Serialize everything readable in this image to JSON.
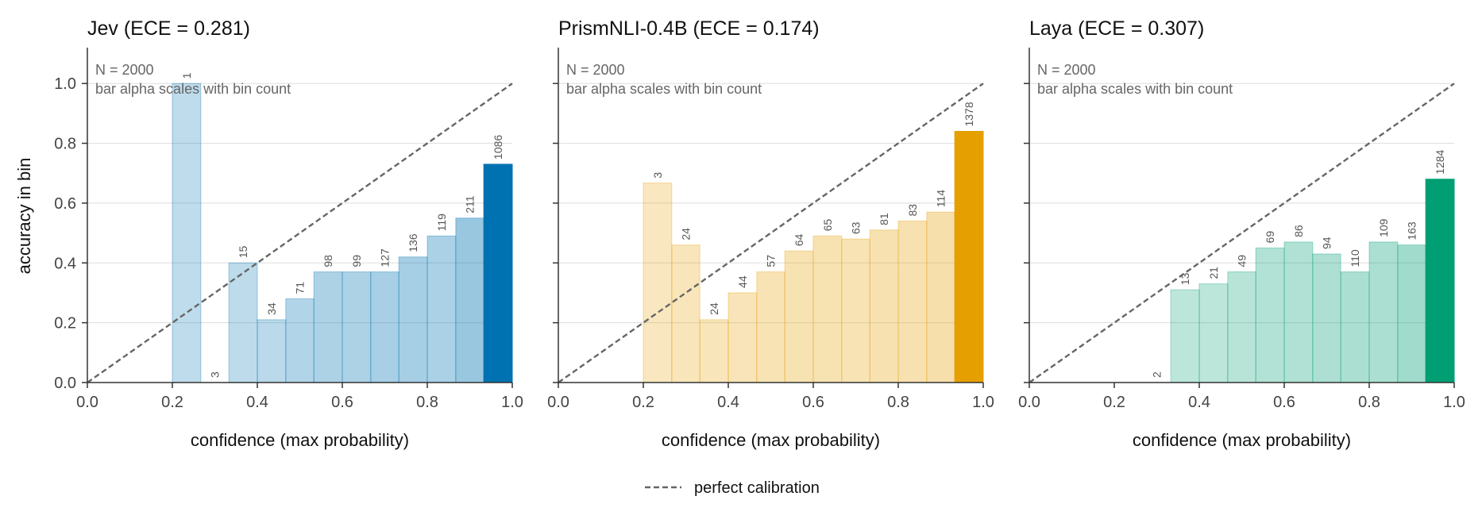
{
  "figure": {
    "ylabel": "accuracy in bin",
    "legend": {
      "label": "perfect calibration",
      "placement": "bottom-center"
    }
  },
  "chart_data": [
    {
      "type": "bar",
      "title": "Jev  (ECE = 0.281)",
      "xlabel": "confidence (max probability)",
      "ylabel": "accuracy in bin",
      "note_lines": [
        "N = 2000",
        "bar alpha scales with bin count"
      ],
      "color": "#0072b2",
      "xlim": [
        0.0,
        1.0
      ],
      "ylim": [
        0.0,
        1.12
      ],
      "grid": true,
      "xticks": [
        "0.0",
        "0.2",
        "0.4",
        "0.6",
        "0.8",
        "1.0"
      ],
      "yticks": [
        "0.0",
        "0.2",
        "0.4",
        "0.6",
        "0.8",
        "1.0"
      ],
      "bins": [
        {
          "x0": 0.2,
          "x1": 0.267,
          "acc": 1.0,
          "count": 1
        },
        {
          "x0": 0.267,
          "x1": 0.333,
          "acc": 0.0,
          "count": 3
        },
        {
          "x0": 0.333,
          "x1": 0.4,
          "acc": 0.4,
          "count": 15
        },
        {
          "x0": 0.4,
          "x1": 0.467,
          "acc": 0.21,
          "count": 34
        },
        {
          "x0": 0.467,
          "x1": 0.533,
          "acc": 0.28,
          "count": 71
        },
        {
          "x0": 0.533,
          "x1": 0.6,
          "acc": 0.37,
          "count": 98
        },
        {
          "x0": 0.6,
          "x1": 0.667,
          "acc": 0.37,
          "count": 99
        },
        {
          "x0": 0.667,
          "x1": 0.733,
          "acc": 0.37,
          "count": 127
        },
        {
          "x0": 0.733,
          "x1": 0.8,
          "acc": 0.42,
          "count": 136
        },
        {
          "x0": 0.8,
          "x1": 0.867,
          "acc": 0.49,
          "count": 119
        },
        {
          "x0": 0.867,
          "x1": 0.933,
          "acc": 0.55,
          "count": 211
        },
        {
          "x0": 0.933,
          "x1": 1.0,
          "acc": 0.73,
          "count": 1086
        }
      ],
      "reference_line": {
        "from": [
          0,
          0
        ],
        "to": [
          1,
          1
        ],
        "style": "dashed"
      }
    },
    {
      "type": "bar",
      "title": "PrismNLI-0.4B  (ECE = 0.174)",
      "xlabel": "confidence (max probability)",
      "note_lines": [
        "N = 2000",
        "bar alpha scales with bin count"
      ],
      "color": "#e69f00",
      "xlim": [
        0.0,
        1.0
      ],
      "ylim": [
        0.0,
        1.12
      ],
      "grid": true,
      "xticks": [
        "0.0",
        "0.2",
        "0.4",
        "0.6",
        "0.8",
        "1.0"
      ],
      "yticks": [],
      "bins": [
        {
          "x0": 0.2,
          "x1": 0.267,
          "acc": 0.667,
          "count": 3
        },
        {
          "x0": 0.267,
          "x1": 0.333,
          "acc": 0.46,
          "count": 24
        },
        {
          "x0": 0.333,
          "x1": 0.4,
          "acc": 0.21,
          "count": 24
        },
        {
          "x0": 0.4,
          "x1": 0.467,
          "acc": 0.3,
          "count": 44
        },
        {
          "x0": 0.467,
          "x1": 0.533,
          "acc": 0.37,
          "count": 57
        },
        {
          "x0": 0.533,
          "x1": 0.6,
          "acc": 0.44,
          "count": 64
        },
        {
          "x0": 0.6,
          "x1": 0.667,
          "acc": 0.49,
          "count": 65
        },
        {
          "x0": 0.667,
          "x1": 0.733,
          "acc": 0.48,
          "count": 63
        },
        {
          "x0": 0.733,
          "x1": 0.8,
          "acc": 0.51,
          "count": 81
        },
        {
          "x0": 0.8,
          "x1": 0.867,
          "acc": 0.54,
          "count": 83
        },
        {
          "x0": 0.867,
          "x1": 0.933,
          "acc": 0.57,
          "count": 114
        },
        {
          "x0": 0.933,
          "x1": 1.0,
          "acc": 0.84,
          "count": 1378
        }
      ],
      "reference_line": {
        "from": [
          0,
          0
        ],
        "to": [
          1,
          1
        ],
        "style": "dashed"
      }
    },
    {
      "type": "bar",
      "title": "Laya  (ECE = 0.307)",
      "xlabel": "confidence (max probability)",
      "note_lines": [
        "N = 2000",
        "bar alpha scales with bin count"
      ],
      "color": "#009e73",
      "xlim": [
        0.0,
        1.0
      ],
      "ylim": [
        0.0,
        1.12
      ],
      "grid": true,
      "xticks": [
        "0.0",
        "0.2",
        "0.4",
        "0.6",
        "0.8",
        "1.0"
      ],
      "yticks": [],
      "bins": [
        {
          "x0": 0.267,
          "x1": 0.333,
          "acc": 0.0,
          "count": 2
        },
        {
          "x0": 0.333,
          "x1": 0.4,
          "acc": 0.31,
          "count": 13
        },
        {
          "x0": 0.4,
          "x1": 0.467,
          "acc": 0.33,
          "count": 21
        },
        {
          "x0": 0.467,
          "x1": 0.533,
          "acc": 0.37,
          "count": 49
        },
        {
          "x0": 0.533,
          "x1": 0.6,
          "acc": 0.45,
          "count": 69
        },
        {
          "x0": 0.6,
          "x1": 0.667,
          "acc": 0.47,
          "count": 86
        },
        {
          "x0": 0.667,
          "x1": 0.733,
          "acc": 0.43,
          "count": 94
        },
        {
          "x0": 0.733,
          "x1": 0.8,
          "acc": 0.37,
          "count": 110
        },
        {
          "x0": 0.8,
          "x1": 0.867,
          "acc": 0.47,
          "count": 109
        },
        {
          "x0": 0.867,
          "x1": 0.933,
          "acc": 0.46,
          "count": 163
        },
        {
          "x0": 0.933,
          "x1": 1.0,
          "acc": 0.68,
          "count": 1284
        }
      ],
      "reference_line": {
        "from": [
          0,
          0
        ],
        "to": [
          1,
          1
        ],
        "style": "dashed"
      }
    }
  ]
}
